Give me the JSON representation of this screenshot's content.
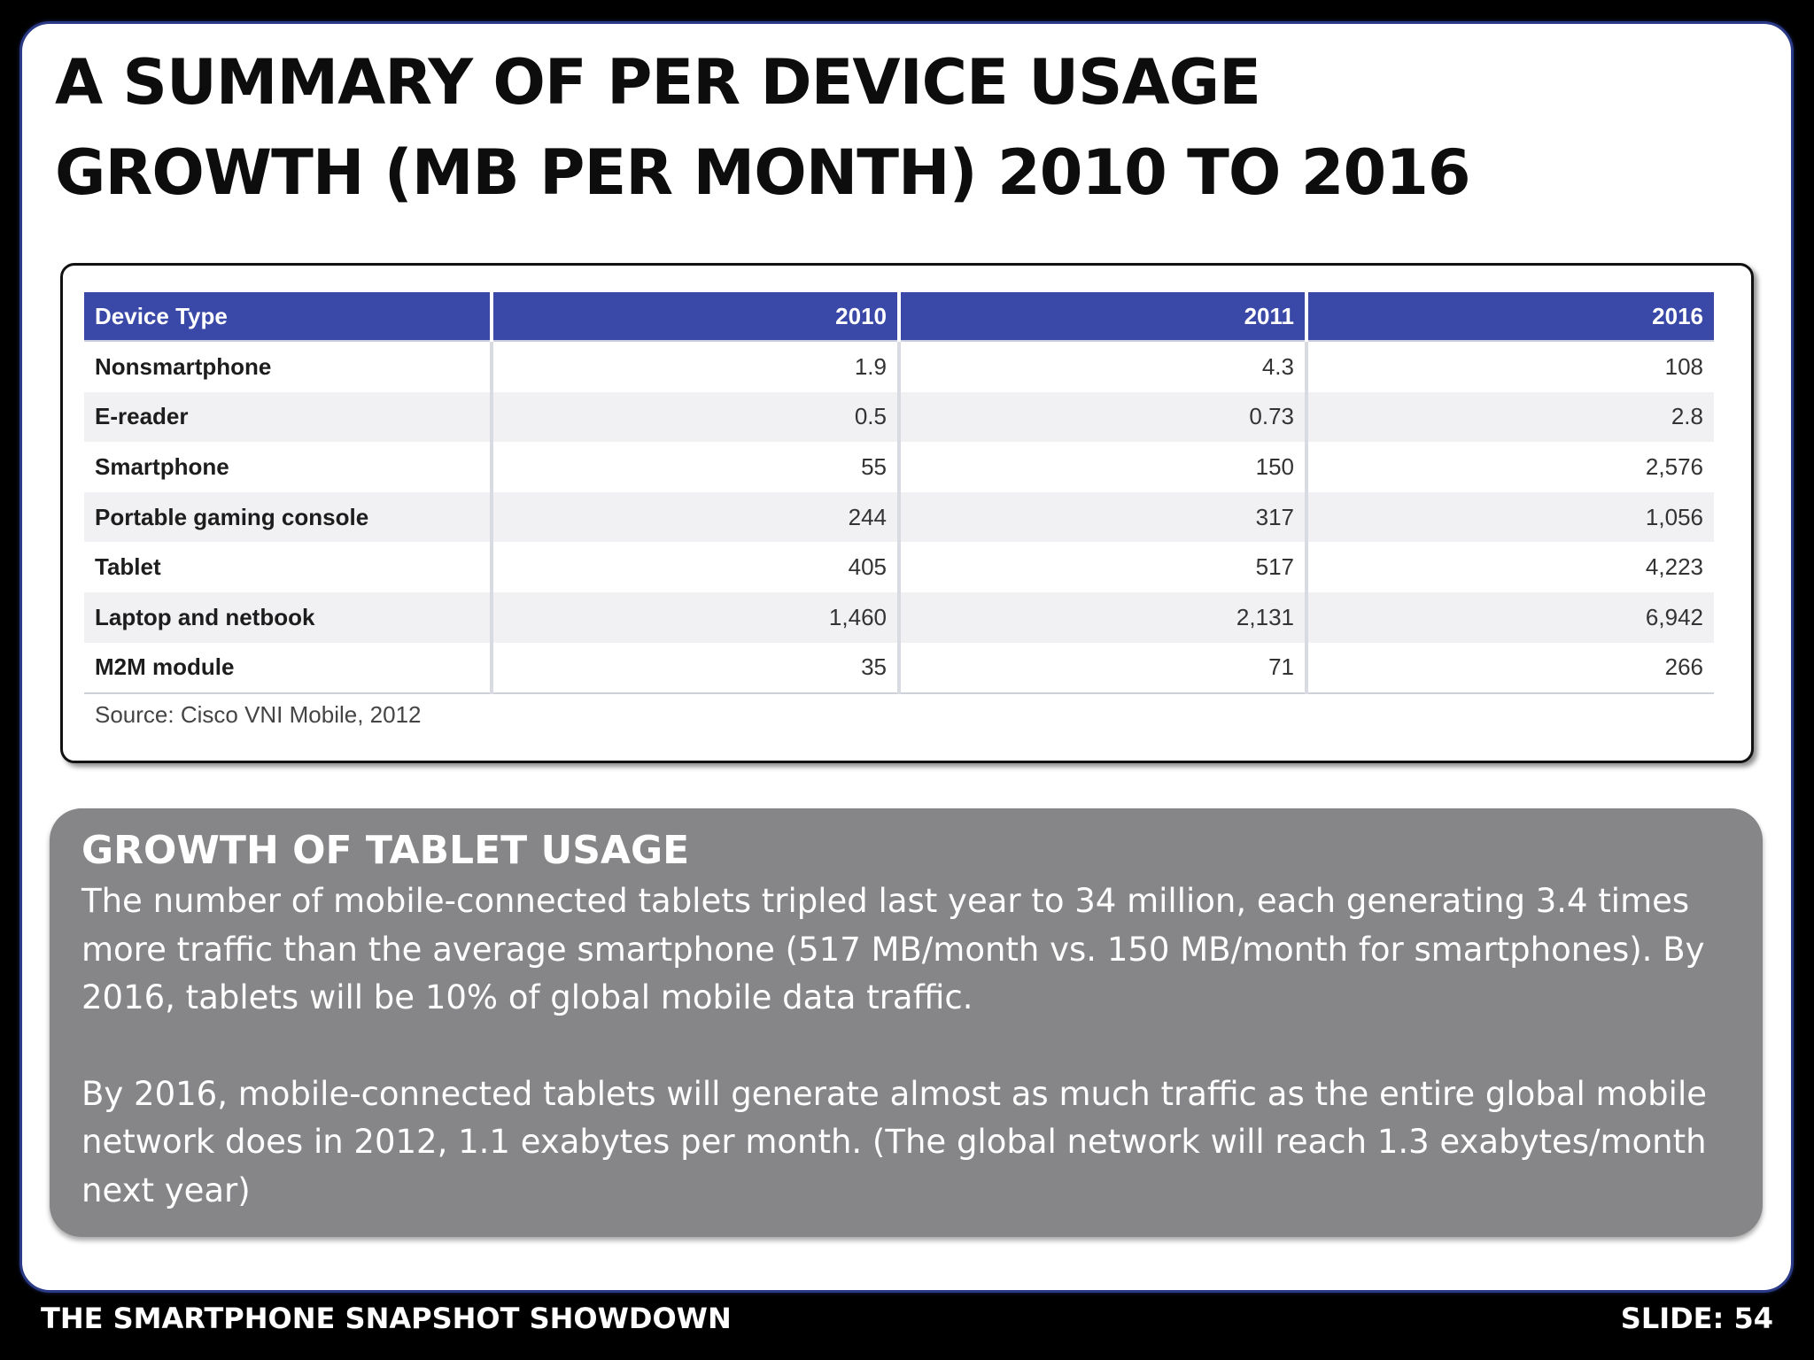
{
  "title": {
    "line1": "A SUMMARY OF PER DEVICE USAGE",
    "line2": "GROWTH (MB PER MONTH) 2010 TO 2016"
  },
  "table": {
    "headers": [
      "Device Type",
      "2010",
      "2011",
      "2016"
    ],
    "rows": [
      [
        "Nonsmartphone",
        "1.9",
        "4.3",
        "108"
      ],
      [
        "E-reader",
        "0.5",
        "0.73",
        "2.8"
      ],
      [
        "Smartphone",
        "55",
        "150",
        "2,576"
      ],
      [
        "Portable gaming console",
        "244",
        "317",
        "1,056"
      ],
      [
        "Tablet",
        "405",
        "517",
        "4,223"
      ],
      [
        "Laptop and netbook",
        "1,460",
        "2,131",
        "6,942"
      ],
      [
        "M2M module",
        "35",
        "71",
        "266"
      ]
    ],
    "source": "Source: Cisco VNI Mobile, 2012"
  },
  "note": {
    "heading": "GROWTH OF TABLET USAGE",
    "paragraph1": "The number of mobile-connected tablets tripled last year to 34 million, each generating 3.4 times more traffic than the average smartphone (517 MB/month vs. 150 MB/month for smartphones). By 2016, tablets will be 10% of global mobile data traffic.",
    "paragraph2": "By 2016, mobile-connected tablets will generate almost as much traffic as the entire global mobile network does in 2012, 1.1 exabytes per month. (The global network will reach 1.3 exabytes/month next year)"
  },
  "footer": {
    "deck_title": "THE SMARTPHONE SNAPSHOT SHOWDOWN",
    "slide_number": "SLIDE: 54"
  },
  "colors": {
    "header_fill": "#3a49a8",
    "note_fill": "#868688",
    "slide_border": "#2b3a86"
  }
}
